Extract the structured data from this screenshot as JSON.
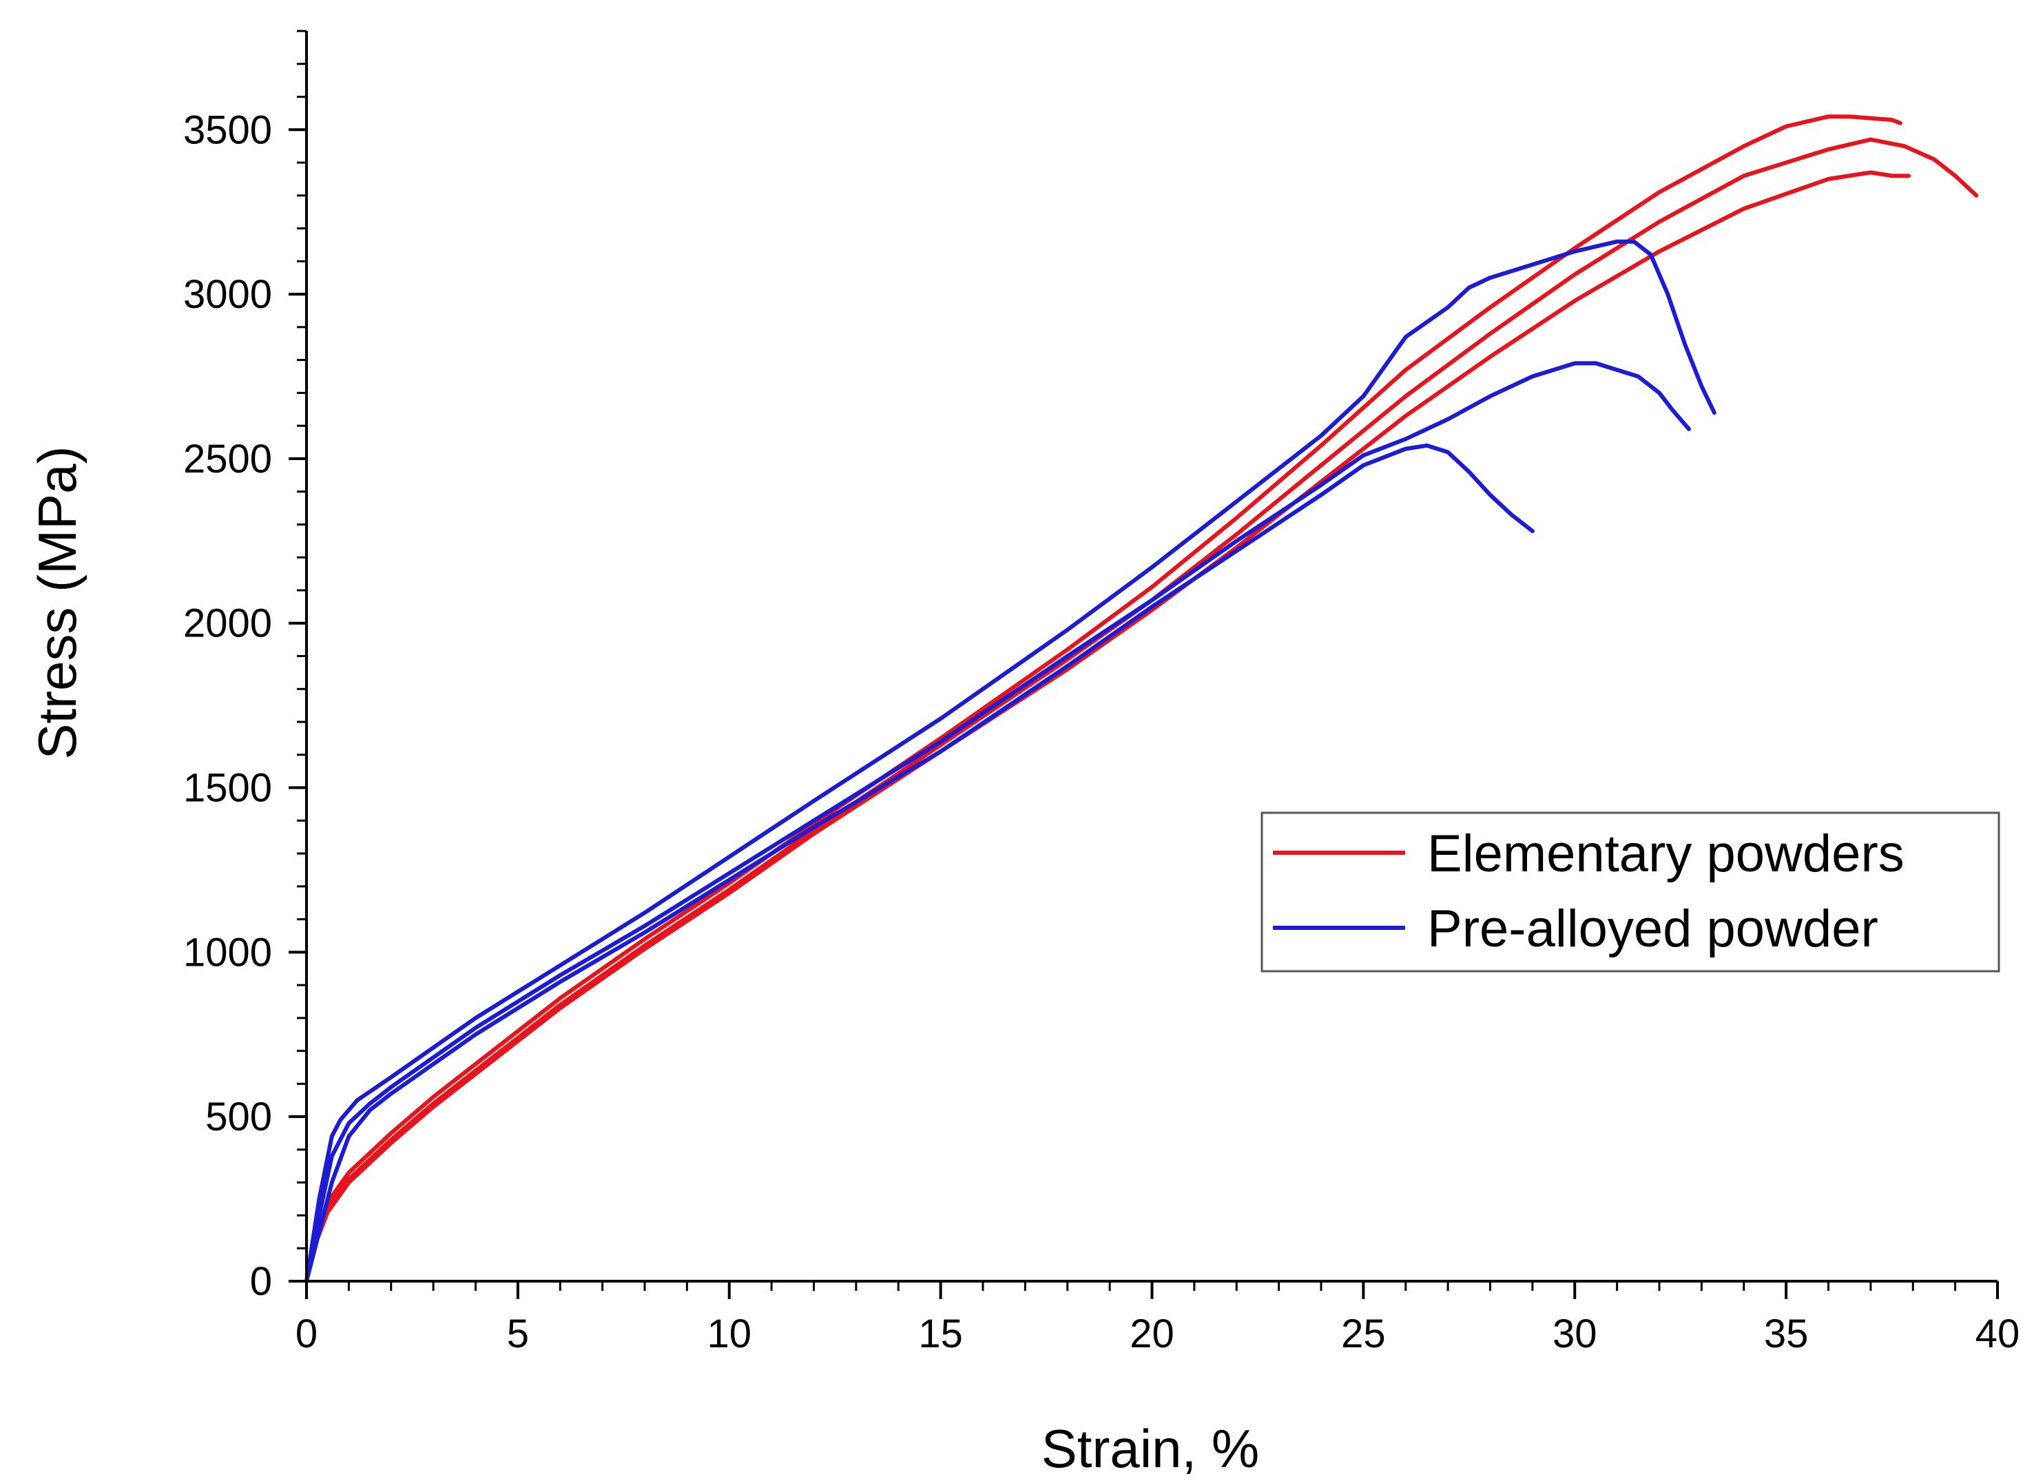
{
  "chart_data": {
    "type": "line",
    "title": "",
    "xlabel": "Strain, %",
    "ylabel": "Stress (MPa)",
    "xlim": [
      0,
      40
    ],
    "ylim": [
      0,
      3800
    ],
    "x_ticks": [
      0,
      5,
      10,
      15,
      20,
      25,
      30,
      35,
      40
    ],
    "y_ticks": [
      0,
      500,
      1000,
      1500,
      2000,
      2500,
      3000,
      3500
    ],
    "grid": false,
    "legend_position": "center-right",
    "legend": [
      {
        "label": "Elementary powders",
        "color": "#e8141c"
      },
      {
        "label": "Pre-alloyed powder",
        "color": "#1c1cd4"
      }
    ],
    "series": [
      {
        "name": "Elementary powders",
        "group": "Elementary powders",
        "color": "#e8141c",
        "x": [
          0,
          0.2,
          0.5,
          1,
          2,
          3,
          4,
          5,
          6,
          8,
          10,
          12,
          15,
          18,
          20,
          22,
          24,
          26,
          28,
          30,
          32,
          34,
          35,
          36,
          36.5,
          37.5,
          37.7
        ],
        "y": [
          0,
          130,
          240,
          330,
          450,
          560,
          660,
          760,
          860,
          1040,
          1210,
          1390,
          1650,
          1920,
          2110,
          2320,
          2540,
          2770,
          2960,
          3140,
          3310,
          3450,
          3510,
          3540,
          3540,
          3530,
          3520
        ]
      },
      {
        "name": "Elementary powders",
        "group": "Elementary powders",
        "color": "#e8141c",
        "x": [
          0,
          0.2,
          0.5,
          1,
          2,
          3,
          4,
          5,
          6,
          8,
          10,
          12,
          15,
          18,
          20,
          22,
          24,
          26,
          28,
          30,
          32,
          34,
          36,
          37,
          37.8,
          38.5,
          39,
          39.5
        ],
        "y": [
          0,
          120,
          220,
          310,
          430,
          540,
          640,
          740,
          840,
          1020,
          1190,
          1370,
          1630,
          1890,
          2070,
          2270,
          2480,
          2690,
          2880,
          3060,
          3220,
          3360,
          3440,
          3470,
          3450,
          3410,
          3360,
          3300
        ]
      },
      {
        "name": "Elementary powders",
        "group": "Elementary powders",
        "color": "#e8141c",
        "x": [
          0,
          0.2,
          0.5,
          1,
          2,
          3,
          4,
          5,
          6,
          8,
          10,
          12,
          15,
          18,
          20,
          22,
          24,
          26,
          28,
          30,
          32,
          34,
          36,
          37,
          37.5,
          37.9
        ],
        "y": [
          0,
          110,
          210,
          300,
          420,
          530,
          630,
          730,
          830,
          1010,
          1180,
          1360,
          1610,
          1860,
          2040,
          2230,
          2430,
          2630,
          2810,
          2980,
          3130,
          3260,
          3350,
          3370,
          3360,
          3360
        ]
      },
      {
        "name": "Pre-alloyed powder",
        "group": "Pre-alloyed powder",
        "color": "#1c1cd4",
        "x": [
          0,
          0.3,
          0.6,
          0.8,
          1,
          1.2,
          2,
          3,
          4,
          5,
          6,
          8,
          10,
          12,
          15,
          18,
          20,
          22,
          24,
          25,
          25.5,
          26,
          27,
          27.5,
          28,
          29,
          30,
          31,
          31.4,
          31.8,
          32.2,
          32.6,
          33,
          33.3
        ],
        "y": [
          0,
          250,
          440,
          490,
          520,
          550,
          620,
          710,
          800,
          880,
          960,
          1120,
          1290,
          1460,
          1710,
          1980,
          2170,
          2370,
          2570,
          2690,
          2780,
          2870,
          2960,
          3020,
          3050,
          3090,
          3130,
          3160,
          3160,
          3120,
          3000,
          2850,
          2720,
          2640
        ]
      },
      {
        "name": "Pre-alloyed powder",
        "group": "Pre-alloyed powder",
        "color": "#1c1cd4",
        "x": [
          0,
          0.3,
          0.6,
          1,
          1.5,
          2,
          3,
          4,
          5,
          6,
          8,
          10,
          12,
          15,
          18,
          20,
          22,
          24,
          25,
          26,
          27,
          28,
          29,
          30,
          30.5,
          31,
          31.5,
          32,
          32.3,
          32.7
        ],
        "y": [
          0,
          200,
          380,
          480,
          540,
          590,
          680,
          770,
          850,
          930,
          1080,
          1240,
          1400,
          1640,
          1900,
          2070,
          2250,
          2420,
          2510,
          2560,
          2620,
          2690,
          2750,
          2790,
          2790,
          2770,
          2750,
          2700,
          2650,
          2590
        ]
      },
      {
        "name": "Pre-alloyed powder",
        "group": "Pre-alloyed powder",
        "color": "#1c1cd4",
        "x": [
          0,
          0.3,
          0.6,
          1,
          1.5,
          2,
          3,
          4,
          5,
          6,
          8,
          10,
          12,
          15,
          18,
          20,
          22,
          24,
          25,
          26,
          26.5,
          27,
          27.5,
          28,
          28.5,
          29
        ],
        "y": [
          0,
          150,
          300,
          440,
          520,
          570,
          660,
          750,
          830,
          910,
          1060,
          1220,
          1380,
          1610,
          1870,
          2050,
          2220,
          2390,
          2480,
          2530,
          2540,
          2520,
          2460,
          2390,
          2330,
          2280
        ]
      }
    ]
  }
}
